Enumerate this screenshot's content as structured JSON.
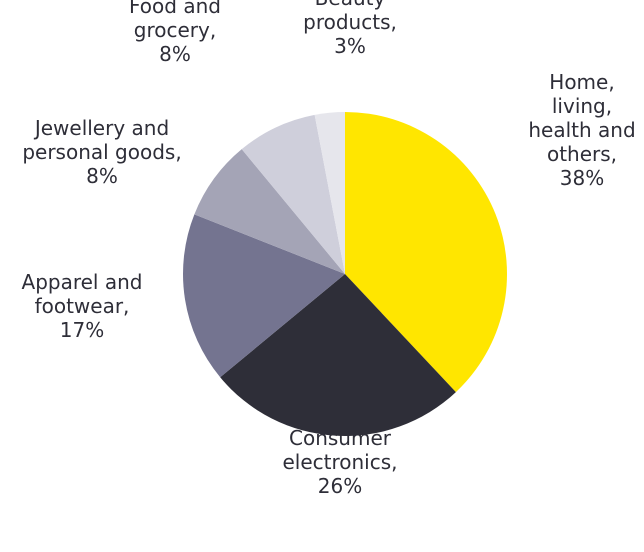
{
  "chart_data": {
    "type": "pie",
    "title": "",
    "start_angle_deg": 0,
    "direction": "clockwise",
    "slices": [
      {
        "lines": [
          "Home,",
          "living,",
          "health and",
          "others,",
          "38%"
        ],
        "value": 38,
        "color": "#ffe600"
      },
      {
        "lines": [
          "Consumer",
          "electronics,",
          "26%"
        ],
        "value": 26,
        "color": "#2e2e38"
      },
      {
        "lines": [
          "Apparel and",
          "footwear,",
          "17%"
        ],
        "value": 17,
        "color": "#747490"
      },
      {
        "lines": [
          "Jewellery and",
          "personal goods,",
          "8%"
        ],
        "value": 8,
        "color": "#a4a4b6"
      },
      {
        "lines": [
          "Food and",
          "grocery,",
          "8%"
        ],
        "value": 8,
        "color": "#cfcfdb"
      },
      {
        "lines": [
          "Beauty",
          "products,",
          "3%"
        ],
        "value": 3,
        "color": "#e6e6ec"
      }
    ]
  }
}
